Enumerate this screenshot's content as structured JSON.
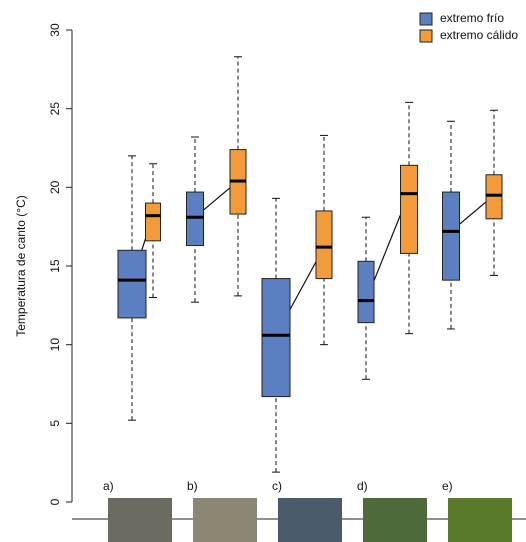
{
  "chart_data": {
    "type": "box",
    "y_label": "Temperatura de canto (°C)",
    "categories": [
      "a)",
      "b)",
      "c)",
      "d)",
      "e)"
    ],
    "series": [
      {
        "name": "extremo frío",
        "color": "#5b7fc1",
        "values": [
          {
            "min": 5.2,
            "q1": 11.7,
            "median": 14.1,
            "q3": 16.0,
            "max": 22.0
          },
          {
            "min": 12.7,
            "q1": 16.3,
            "median": 18.1,
            "q3": 19.7,
            "max": 23.2
          },
          {
            "min": 1.9,
            "q1": 6.7,
            "median": 10.6,
            "q3": 14.2,
            "max": 19.3
          },
          {
            "min": 7.8,
            "q1": 11.4,
            "median": 12.8,
            "q3": 15.3,
            "max": 18.1
          },
          {
            "min": 11.0,
            "q1": 14.1,
            "median": 17.2,
            "q3": 19.7,
            "max": 24.2
          }
        ]
      },
      {
        "name": "extremo cálido",
        "color": "#f39a3a",
        "values": [
          {
            "min": 13.0,
            "q1": 16.6,
            "median": 18.2,
            "q3": 19.0,
            "max": 21.5
          },
          {
            "min": 13.1,
            "q1": 18.3,
            "median": 20.4,
            "q3": 22.4,
            "max": 28.3
          },
          {
            "min": 10.0,
            "q1": 14.2,
            "median": 16.2,
            "q3": 18.5,
            "max": 23.3
          },
          {
            "min": 10.7,
            "q1": 15.8,
            "median": 19.6,
            "q3": 21.4,
            "max": 25.4
          },
          {
            "min": 14.4,
            "q1": 18.0,
            "median": 19.5,
            "q3": 20.8,
            "max": 24.9
          }
        ]
      }
    ],
    "ylim": [
      0,
      30
    ],
    "yticks": [
      0,
      5,
      10,
      15,
      20,
      25,
      30
    ],
    "legend": "top-right"
  }
}
